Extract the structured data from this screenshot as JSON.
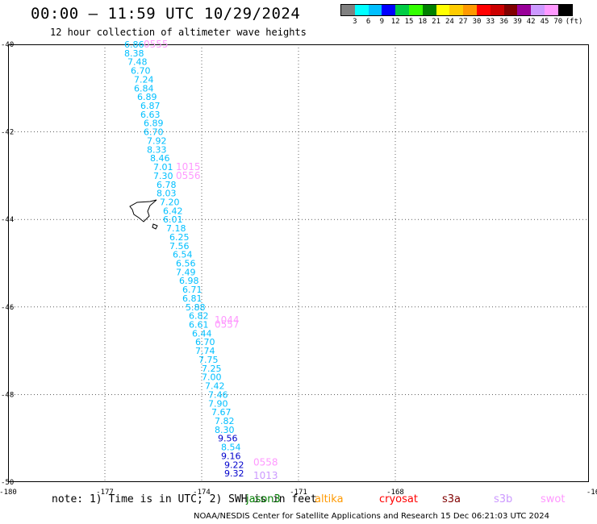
{
  "title": "00:00 – 11:59 UTC 10/29/2024",
  "subtitle": "12 hour collection of altimeter wave heights",
  "legend": {
    "unit": "(ft)",
    "colors": [
      "#808080",
      "#00ffff",
      "#00bfff",
      "#0000ff",
      "#00cc44",
      "#33ff00",
      "#008000",
      "#ffff00",
      "#ffcc00",
      "#ff9900",
      "#ff0000",
      "#cc0000",
      "#800000",
      "#990099",
      "#cc99ff",
      "#ff99ff",
      "#000000"
    ],
    "labels": [
      "3",
      "6",
      "9",
      "12",
      "15",
      "18",
      "21",
      "24",
      "27",
      "30",
      "33",
      "36",
      "39",
      "42",
      "45",
      "70"
    ]
  },
  "axes": {
    "lon_ticks": [
      "-180",
      "-177",
      "-174",
      "-171",
      "-168",
      "-16"
    ],
    "lat_ticks": [
      "-40",
      "-42",
      "-44",
      "-46",
      "-48",
      "-50"
    ]
  },
  "track_readings": [
    {
      "lat": -40.0,
      "lon": -176.4,
      "text": "6.86",
      "color": "#00bfff"
    },
    {
      "lat": -40.2,
      "lon": -176.4,
      "text": "8.38",
      "color": "#00bfff"
    },
    {
      "lat": -40.4,
      "lon": -176.3,
      "text": "7.48",
      "color": "#00bfff"
    },
    {
      "lat": -40.6,
      "lon": -176.2,
      "text": "6.70",
      "color": "#00bfff"
    },
    {
      "lat": -40.8,
      "lon": -176.1,
      "text": "7.24",
      "color": "#00bfff"
    },
    {
      "lat": -41.0,
      "lon": -176.1,
      "text": "6.84",
      "color": "#00bfff"
    },
    {
      "lat": -41.2,
      "lon": -176.0,
      "text": "6.89",
      "color": "#00bfff"
    },
    {
      "lat": -41.4,
      "lon": -175.9,
      "text": "6.87",
      "color": "#00bfff"
    },
    {
      "lat": -41.6,
      "lon": -175.9,
      "text": "6.63",
      "color": "#00bfff"
    },
    {
      "lat": -41.8,
      "lon": -175.8,
      "text": "6.89",
      "color": "#00bfff"
    },
    {
      "lat": -42.0,
      "lon": -175.8,
      "text": "6.70",
      "color": "#00bfff"
    },
    {
      "lat": -42.2,
      "lon": -175.7,
      "text": "7.92",
      "color": "#00bfff"
    },
    {
      "lat": -42.4,
      "lon": -175.7,
      "text": "8.33",
      "color": "#00bfff"
    },
    {
      "lat": -42.6,
      "lon": -175.6,
      "text": "8.46",
      "color": "#00bfff"
    },
    {
      "lat": -42.8,
      "lon": -175.5,
      "text": "7.01",
      "color": "#00bfff"
    },
    {
      "lat": -43.0,
      "lon": -175.5,
      "text": "7.30",
      "color": "#00bfff"
    },
    {
      "lat": -43.2,
      "lon": -175.4,
      "text": "6.78",
      "color": "#00bfff"
    },
    {
      "lat": -43.4,
      "lon": -175.4,
      "text": "8.03",
      "color": "#00bfff"
    },
    {
      "lat": -43.6,
      "lon": -175.3,
      "text": "7.20",
      "color": "#00bfff"
    },
    {
      "lat": -43.8,
      "lon": -175.2,
      "text": "6.42",
      "color": "#00bfff"
    },
    {
      "lat": -44.0,
      "lon": -175.2,
      "text": "6.01",
      "color": "#00bfff"
    },
    {
      "lat": -44.2,
      "lon": -175.1,
      "text": "7.18",
      "color": "#00bfff"
    },
    {
      "lat": -44.4,
      "lon": -175.0,
      "text": "6.25",
      "color": "#00bfff"
    },
    {
      "lat": -44.6,
      "lon": -175.0,
      "text": "7.56",
      "color": "#00bfff"
    },
    {
      "lat": -44.8,
      "lon": -174.9,
      "text": "6.54",
      "color": "#00bfff"
    },
    {
      "lat": -45.0,
      "lon": -174.8,
      "text": "6.56",
      "color": "#00bfff"
    },
    {
      "lat": -45.2,
      "lon": -174.8,
      "text": "7.49",
      "color": "#00bfff"
    },
    {
      "lat": -45.4,
      "lon": -174.7,
      "text": "6.98",
      "color": "#00bfff"
    },
    {
      "lat": -45.6,
      "lon": -174.6,
      "text": "6.71",
      "color": "#00bfff"
    },
    {
      "lat": -45.8,
      "lon": -174.6,
      "text": "6.81",
      "color": "#00bfff"
    },
    {
      "lat": -46.0,
      "lon": -174.5,
      "text": "5.88",
      "color": "#00bfff"
    },
    {
      "lat": -46.2,
      "lon": -174.4,
      "text": "6.82",
      "color": "#00bfff"
    },
    {
      "lat": -46.4,
      "lon": -174.4,
      "text": "6.61",
      "color": "#00bfff"
    },
    {
      "lat": -46.6,
      "lon": -174.3,
      "text": "6.44",
      "color": "#00bfff"
    },
    {
      "lat": -46.8,
      "lon": -174.2,
      "text": "6.70",
      "color": "#00bfff"
    },
    {
      "lat": -47.0,
      "lon": -174.2,
      "text": "7.74",
      "color": "#00bfff"
    },
    {
      "lat": -47.2,
      "lon": -174.1,
      "text": "7.75",
      "color": "#00bfff"
    },
    {
      "lat": -47.4,
      "lon": -174.0,
      "text": "7.25",
      "color": "#00bfff"
    },
    {
      "lat": -47.6,
      "lon": -174.0,
      "text": "7.00",
      "color": "#00bfff"
    },
    {
      "lat": -47.8,
      "lon": -173.9,
      "text": "7.42",
      "color": "#00bfff"
    },
    {
      "lat": -48.0,
      "lon": -173.8,
      "text": "7.46",
      "color": "#00bfff"
    },
    {
      "lat": -48.2,
      "lon": -173.8,
      "text": "7.90",
      "color": "#00bfff"
    },
    {
      "lat": -48.4,
      "lon": -173.7,
      "text": "7.67",
      "color": "#00bfff"
    },
    {
      "lat": -48.6,
      "lon": -173.6,
      "text": "7.82",
      "color": "#00bfff"
    },
    {
      "lat": -48.8,
      "lon": -173.6,
      "text": "8.30",
      "color": "#00bfff"
    },
    {
      "lat": -49.0,
      "lon": -173.5,
      "text": "9.56",
      "color": "#0000cc"
    },
    {
      "lat": -49.2,
      "lon": -173.4,
      "text": "8.54",
      "color": "#00bfff"
    },
    {
      "lat": -49.4,
      "lon": -173.4,
      "text": "9.16",
      "color": "#0000cc"
    },
    {
      "lat": -49.6,
      "lon": -173.3,
      "text": "9.22",
      "color": "#0000cc"
    },
    {
      "lat": -49.8,
      "lon": -173.3,
      "text": "9.32",
      "color": "#0000cc"
    }
  ],
  "pass_times": [
    {
      "lat": -40.0,
      "lon": -175.8,
      "text": "0555",
      "color": "#ff99ff"
    },
    {
      "lat": -42.8,
      "lon": -174.8,
      "text": "1015",
      "color": "#ff99ff"
    },
    {
      "lat": -43.0,
      "lon": -174.8,
      "text": "0556",
      "color": "#ff99ff"
    },
    {
      "lat": -46.3,
      "lon": -173.6,
      "text": "1044",
      "color": "#ff99ff"
    },
    {
      "lat": -46.4,
      "lon": -173.6,
      "text": "0557",
      "color": "#ff99ff"
    },
    {
      "lat": -49.55,
      "lon": -172.4,
      "text": "0558",
      "color": "#ff99ff"
    },
    {
      "lat": -49.85,
      "lon": -172.4,
      "text": "1013",
      "color": "#cc99ff"
    }
  ],
  "note": "note: 1) Time is in UTC; 2) SWH is in feet",
  "satellites": [
    {
      "name": "jason3",
      "color": "#008000"
    },
    {
      "name": "altika",
      "color": "#ff9900"
    },
    {
      "name": "cryosat",
      "color": "#ff0000"
    },
    {
      "name": "s3a",
      "color": "#800000"
    },
    {
      "name": "s3b",
      "color": "#cc99ff"
    },
    {
      "name": "swot",
      "color": "#ff99ff"
    }
  ],
  "footer": "NOAA/NESDIS Center for Satellite Applications and Research    15 Dec 06:21:03 UTC 2024"
}
